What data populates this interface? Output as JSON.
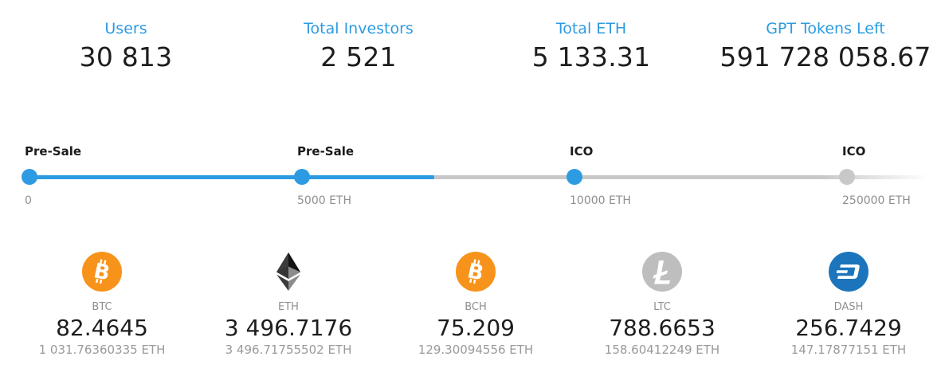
{
  "stats": [
    {
      "label": "Users",
      "value": "30 813"
    },
    {
      "label": "Total Investors",
      "value": "2 521"
    },
    {
      "label": "Total ETH",
      "value": "5 133.31"
    },
    {
      "label": "GPT Tokens Left",
      "value": "591 728 058.67"
    }
  ],
  "progress": {
    "fill_fraction": 0.45,
    "stages": [
      {
        "name": "Pre-Sale",
        "amount": "0",
        "active": true
      },
      {
        "name": "Pre-Sale",
        "amount": "5000 ETH",
        "active": true
      },
      {
        "name": "ICO",
        "amount": "10000 ETH",
        "active": true
      },
      {
        "name": "ICO",
        "amount": "250000 ETH",
        "active": false
      }
    ],
    "colors": {
      "active": "#2d9be1",
      "inactive": "#c8c8c8"
    }
  },
  "currencies": [
    {
      "code": "BTC",
      "amount": "82.4645",
      "eth": "1 031.76360335 ETH",
      "icon": "bitcoin-icon",
      "color": "#f7931a"
    },
    {
      "code": "ETH",
      "amount": "3 496.7176",
      "eth": "3 496.71755502 ETH",
      "icon": "ethereum-icon",
      "color": "#3c3c3d"
    },
    {
      "code": "BCH",
      "amount": "75.209",
      "eth": "129.30094556 ETH",
      "icon": "bitcoin-cash-icon",
      "color": "#f7931a"
    },
    {
      "code": "LTC",
      "amount": "788.6653",
      "eth": "158.60412249 ETH",
      "icon": "litecoin-icon",
      "color": "#bebebe"
    },
    {
      "code": "DASH",
      "amount": "256.7429",
      "eth": "147.17877151 ETH",
      "icon": "dash-icon",
      "color": "#1c75bc"
    }
  ]
}
